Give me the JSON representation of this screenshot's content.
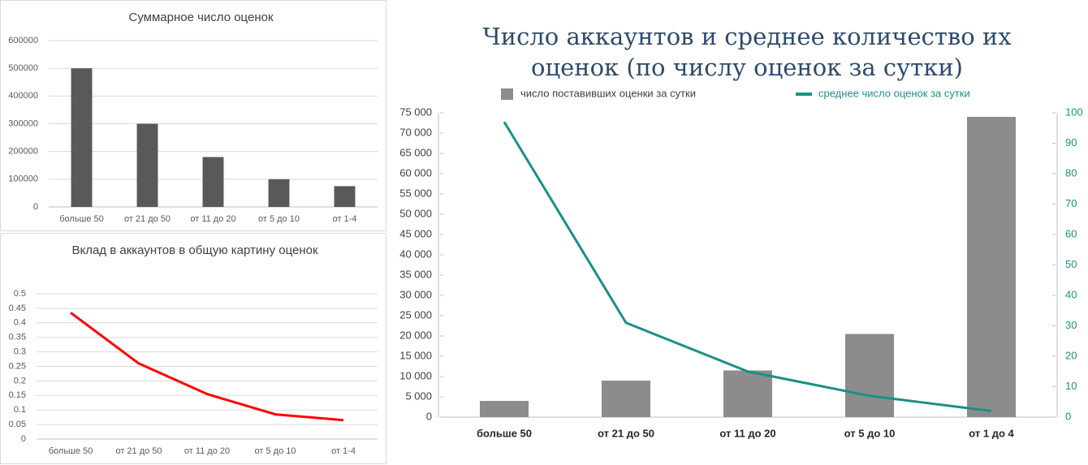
{
  "chart_data": [
    {
      "type": "bar",
      "title": "Суммарное число оценок",
      "categories": [
        "больше 50",
        "от 21 до 50",
        "от 11 до 20",
        "от 5 до 10",
        "от 1-4"
      ],
      "values": [
        500000,
        300000,
        180000,
        100000,
        75000
      ],
      "color": "#595959",
      "ylim": [
        0,
        600000
      ],
      "yticks": [
        0,
        100000,
        200000,
        300000,
        400000,
        500000,
        600000
      ],
      "grid": true
    },
    {
      "type": "line",
      "title": "Вклад в аккаунтов в общую картину оценок",
      "categories": [
        "больше 50",
        "от 21 до 50",
        "от 11 до 20",
        "от 5 до 10",
        "от 1-4"
      ],
      "values": [
        0.435,
        0.26,
        0.155,
        0.085,
        0.065
      ],
      "color": "#ff0000",
      "ylim": [
        0,
        0.5
      ],
      "yticks": [
        0,
        0.05,
        0.1,
        0.15,
        0.2,
        0.25,
        0.3,
        0.35,
        0.4,
        0.45,
        0.5
      ],
      "grid": true
    },
    {
      "type": "combo",
      "title": "Число аккаунтов и среднее количество их оценок (по числу оценок за сутки)",
      "categories": [
        "больше 50",
        "от 21 до 50",
        "от 11 до 20",
        "от 5 до 10",
        "от 1 до 4"
      ],
      "series": [
        {
          "name": "число поставивших оценки за сутки",
          "type": "bar",
          "color": "#8c8c8c",
          "values": [
            4000,
            9000,
            11500,
            20500,
            74000
          ]
        },
        {
          "name": "среднее число оценок за сутки",
          "type": "line",
          "axis": "y2",
          "color": "#1a9088",
          "values": [
            97,
            31,
            15,
            7,
            2
          ]
        }
      ],
      "ylim": [
        0,
        75000
      ],
      "yticks": [
        {
          "value": 0,
          "label": "0"
        },
        {
          "value": 5000,
          "label": "5 000"
        },
        {
          "value": 10000,
          "label": "10 000"
        },
        {
          "value": 15000,
          "label": "15 000"
        },
        {
          "value": 20000,
          "label": "20 000"
        },
        {
          "value": 25000,
          "label": "25 000"
        },
        {
          "value": 30000,
          "label": "30 000"
        },
        {
          "value": 35000,
          "label": "35 000"
        },
        {
          "value": 40000,
          "label": "40 000"
        },
        {
          "value": 45000,
          "label": "45 000"
        },
        {
          "value": 50000,
          "label": "50 000"
        },
        {
          "value": 55000,
          "label": "55 000"
        },
        {
          "value": 60000,
          "label": "60 000"
        },
        {
          "value": 65000,
          "label": "65 000"
        },
        {
          "value": 70000,
          "label": "70 000"
        },
        {
          "value": 75000,
          "label": "75 000"
        }
      ],
      "y2lim": [
        0,
        100
      ],
      "y2ticks": [
        0,
        10,
        20,
        30,
        40,
        50,
        60,
        70,
        80,
        90,
        100
      ],
      "grid": false
    }
  ]
}
